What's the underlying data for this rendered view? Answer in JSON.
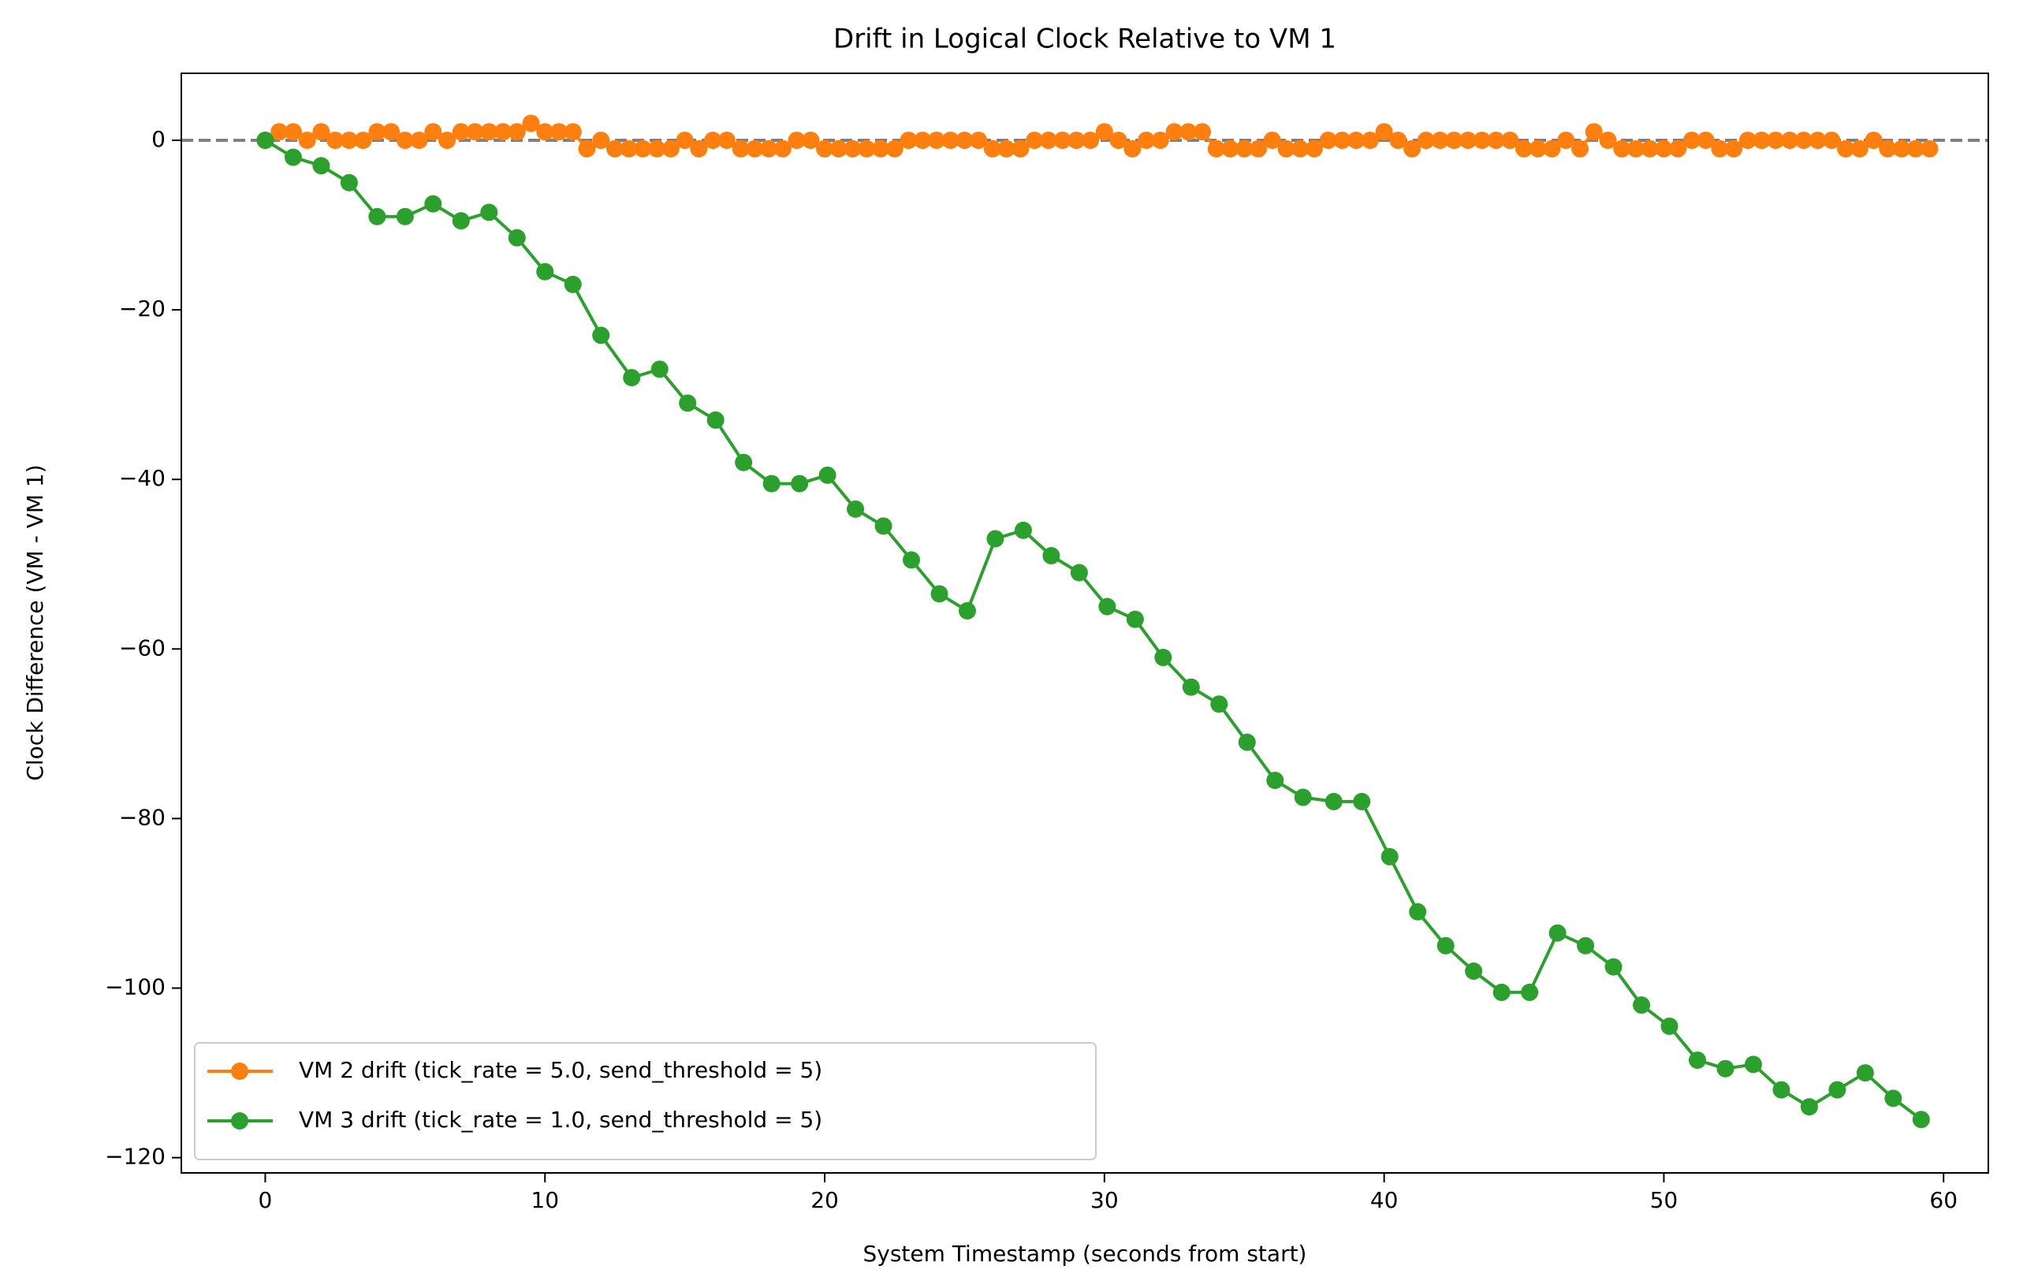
{
  "chart_data": {
    "type": "line",
    "title": "Drift in Logical Clock Relative to VM 1",
    "xlabel": "System Timestamp (seconds from start)",
    "ylabel": "Clock Difference (VM - VM 1)",
    "xlim": [
      -3,
      61.6
    ],
    "ylim": [
      -121.8,
      7.9
    ],
    "xticks": [
      0,
      10,
      20,
      30,
      40,
      50,
      60
    ],
    "yticks": [
      {
        "value": -120,
        "label": "−120"
      },
      {
        "value": -100,
        "label": "−100"
      },
      {
        "value": -80,
        "label": "−80"
      },
      {
        "value": -60,
        "label": "−60"
      },
      {
        "value": -40,
        "label": "−40"
      },
      {
        "value": -20,
        "label": "−20"
      },
      0
    ],
    "hline": {
      "value": 0,
      "color": "#808080"
    },
    "legend": "lower left",
    "series": [
      {
        "name": "VM 2 drift (tick_rate = 5.0, send_threshold = 5)",
        "color": "#ff7f0e",
        "x": [
          0,
          0.5,
          1,
          1.5,
          2,
          2.5,
          3,
          3.5,
          4,
          4.5,
          5,
          5.5,
          6,
          6.5,
          7,
          7.5,
          8,
          8.5,
          9,
          9.5,
          10,
          10.5,
          11,
          11.5,
          12,
          12.5,
          13,
          13.5,
          14,
          14.5,
          15,
          15.5,
          16,
          16.5,
          17,
          17.5,
          18,
          18.5,
          19,
          19.5,
          20,
          20.5,
          21,
          21.5,
          22,
          22.5,
          23,
          23.5,
          24,
          24.5,
          25,
          25.5,
          26,
          26.5,
          27,
          27.5,
          28,
          28.5,
          29,
          29.5,
          30,
          30.5,
          31,
          31.5,
          32,
          32.5,
          33,
          33.5,
          34,
          34.5,
          35,
          35.5,
          36,
          36.5,
          37,
          37.5,
          38,
          38.5,
          39,
          39.5,
          40,
          40.5,
          41,
          41.5,
          42,
          42.5,
          43,
          43.5,
          44,
          44.5,
          45,
          45.5,
          46,
          46.5,
          47,
          47.5,
          48,
          48.5,
          49,
          49.5,
          50,
          50.5,
          51,
          51.5,
          52,
          52.5,
          53,
          53.5,
          54,
          54.5,
          55,
          55.5,
          56,
          56.5,
          57,
          57.5,
          58,
          58.5,
          59,
          59.5
        ],
        "values": [
          0,
          1,
          1,
          0,
          1,
          0,
          0,
          0,
          1,
          1,
          0,
          0,
          1,
          0,
          1,
          1,
          1,
          1,
          1,
          2,
          1,
          1,
          1,
          -1,
          0,
          -1,
          -1,
          -1,
          -1,
          -1,
          0,
          -1,
          0,
          0,
          -1,
          -1,
          -1,
          -1,
          0,
          0,
          -1,
          -1,
          -1,
          -1,
          -1,
          -1,
          0,
          0,
          0,
          0,
          0,
          0,
          -1,
          -1,
          -1,
          0,
          0,
          0,
          0,
          0,
          1,
          0,
          -1,
          0,
          0,
          1,
          1,
          1,
          -1,
          -1,
          -1,
          -1,
          0,
          -1,
          -1,
          -1,
          0,
          0,
          0,
          0,
          1,
          0,
          -1,
          0,
          0,
          0,
          0,
          0,
          0,
          0,
          -1,
          -1,
          -1,
          0,
          -1,
          1,
          0,
          -1,
          -1,
          -1,
          -1,
          -1,
          0,
          0,
          -1,
          -1,
          0,
          0,
          0,
          0,
          0,
          0,
          0,
          -1,
          -1,
          0,
          -1,
          -1,
          -1,
          -1
        ]
      },
      {
        "name": "VM 3 drift (tick_rate = 1.0, send_threshold = 5)",
        "color": "#2ca02c",
        "x": [
          0,
          1.0,
          2.0,
          3.0,
          4.0,
          5.0,
          6.0,
          7.0,
          8.0,
          9.0,
          10.0,
          11.0,
          12.0,
          13.1,
          14.1,
          15.1,
          16.1,
          17.1,
          18.1,
          19.1,
          20.1,
          21.1,
          22.1,
          23.1,
          24.1,
          25.1,
          26.1,
          27.1,
          28.1,
          29.1,
          30.1,
          31.1,
          32.1,
          33.1,
          34.1,
          35.1,
          36.1,
          37.1,
          38.2,
          39.2,
          40.2,
          41.2,
          42.2,
          43.2,
          44.2,
          45.2,
          46.2,
          47.2,
          48.2,
          49.2,
          50.2,
          51.2,
          52.2,
          53.2,
          54.2,
          55.2,
          56.2,
          57.2,
          58.2,
          59.2
        ],
        "values": [
          0,
          -2,
          -3,
          -5,
          -9,
          -9,
          -7.5,
          -9.5,
          -8.5,
          -11.5,
          -15.5,
          -17,
          -23,
          -28,
          -27,
          -31,
          -33,
          -38,
          -40.5,
          -40.5,
          -39.5,
          -43.5,
          -45.5,
          -49.5,
          -53.5,
          -55.5,
          -47,
          -46,
          -49,
          -51,
          -55,
          -56.5,
          -61,
          -64.5,
          -66.5,
          -71,
          -75.5,
          -77.5,
          -78,
          -78,
          -84.5,
          -91,
          -95,
          -98,
          -100.5,
          -100.5,
          -93.5,
          -95,
          -97.5,
          -102,
          -104.5,
          -108.5,
          -109.5,
          -109,
          -112,
          -114,
          -112,
          -110,
          -113,
          -115.5
        ]
      }
    ]
  }
}
